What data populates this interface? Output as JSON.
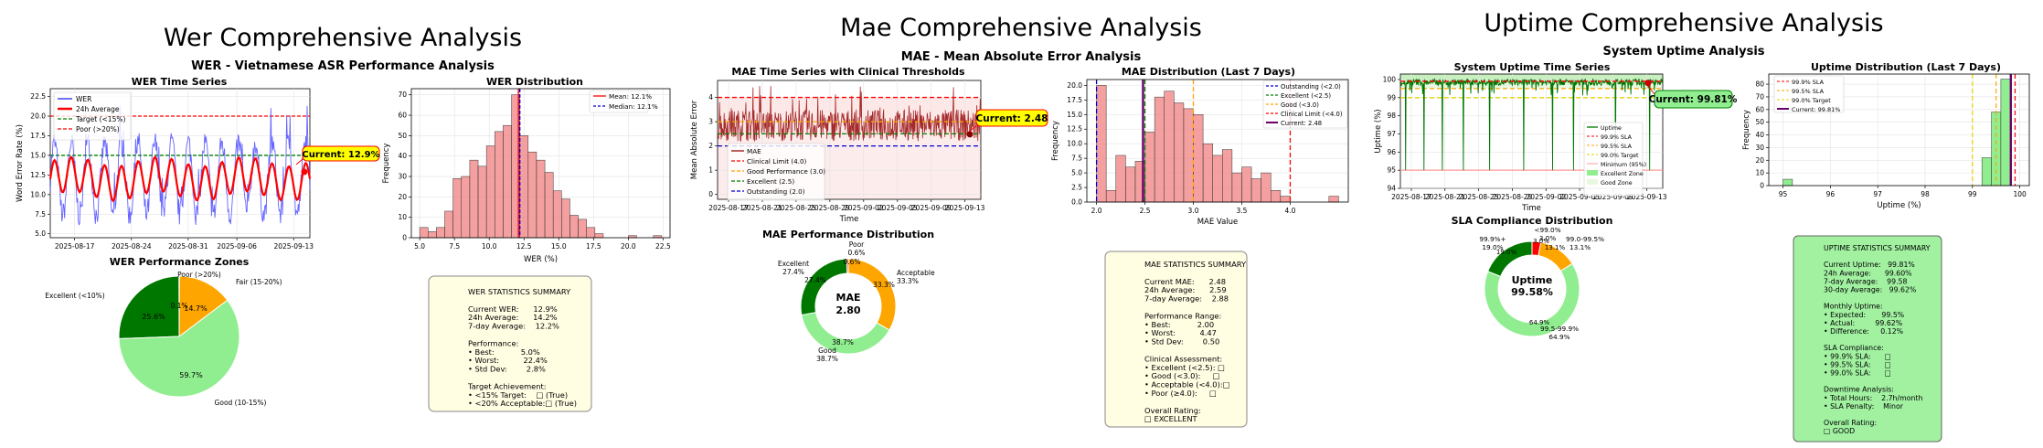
{
  "panels": [
    {
      "suptitle": "Wer Comprehensive Analysis",
      "subtitle": "WER - Vietnamese ASR Performance Analysis",
      "ts": {
        "title": "WER Time Series",
        "ylabel": "Word Error Rate (%)",
        "yticks": [
          "5.0",
          "7.5",
          "10.0",
          "12.5",
          "15.0",
          "17.5",
          "20.0",
          "22.5"
        ],
        "xticks": [
          "2025-08-17",
          "2025-08-24",
          "2025-08-31",
          "2025-09-06",
          "2025-09-13"
        ],
        "legend": [
          "WER",
          "24h Average",
          "Target (<15%)",
          "Poor (>20%)"
        ],
        "annotation": "Current: 12.9%"
      },
      "hist": {
        "title": "WER Distribution",
        "xlabel": "WER (%)",
        "ylabel": "Frequency",
        "xticks": [
          "5.0",
          "7.5",
          "10.0",
          "12.5",
          "15.0",
          "17.5",
          "20.0",
          "22.5"
        ],
        "yticks": [
          "0",
          "10",
          "20",
          "30",
          "40",
          "50",
          "60",
          "70"
        ],
        "legend": [
          "Mean: 12.1%",
          "Median: 12.1%"
        ]
      },
      "pie": {
        "title": "WER Performance Zones",
        "labels": [
          "Excellent (<10%)",
          "Poor (>20%)",
          "Fair (15-20%)",
          "Good (10-15%)"
        ],
        "pcts": [
          "25.6%",
          "0.1%",
          "14.7%",
          "59.7%"
        ]
      },
      "stats": [
        "WER STATISTICS SUMMARY",
        "",
        "Current WER:      12.9%",
        "24h Average:      14.2%",
        "7-day Average:    12.2%",
        "",
        "Performance:",
        "• Best:           5.0%",
        "• Worst:          22.4%",
        "• Std Dev:        2.8%",
        "",
        "Target Achievement:",
        "• <15% Target:    □ (True)",
        "• <20% Acceptable:□ (True)"
      ]
    },
    {
      "suptitle": "Mae Comprehensive Analysis",
      "subtitle": "MAE - Mean Absolute Error Analysis",
      "ts": {
        "title": "MAE Time Series with Clinical Thresholds",
        "ylabel": "Mean Absolute Error",
        "xlabel": "Time",
        "yticks": [
          "0",
          "1",
          "2",
          "3",
          "4"
        ],
        "xticks": [
          "2025-08-17",
          "2025-08-21",
          "2025-08-25",
          "2025-08-29",
          "2025-09-02",
          "2025-09-05",
          "2025-09-09",
          "2025-09-13"
        ],
        "legend": [
          "MAE",
          "Clinical Limit (4.0)",
          "Good Performance (3.0)",
          "Excellent (2.5)",
          "Outstanding (2.0)"
        ],
        "annotation": "Current: 2.48"
      },
      "hist": {
        "title": "MAE Distribution (Last 7 Days)",
        "xlabel": "MAE Value",
        "ylabel": "Frequency",
        "xticks": [
          "2.0",
          "2.5",
          "3.0",
          "3.5",
          "4.0"
        ],
        "yticks": [
          "0.0",
          "2.5",
          "5.0",
          "7.5",
          "10.0",
          "12.5",
          "15.0",
          "17.5",
          "20.0"
        ],
        "legend": [
          "Outstanding (<2.0)",
          "Excellent (<2.5)",
          "Good (<3.0)",
          "Clinical Limit (<4.0)",
          "Current: 2.48"
        ]
      },
      "pie": {
        "title": "MAE Performance Distribution",
        "center1": "MAE",
        "center2": "2.80",
        "labels": [
          "Poor",
          "Acceptable",
          "Good",
          "Excellent"
        ],
        "pcts": [
          "0.6%",
          "33.3%",
          "38.7%",
          "27.4%"
        ],
        "inner": [
          "0.6%",
          "33.3%",
          "38.7%",
          "27.4%"
        ]
      },
      "stats": [
        "MAE STATISTICS SUMMARY",
        "",
        "Current MAE:      2.48",
        "24h Average:      2.59",
        "7-day Average:    2.88",
        "",
        "Performance Range:",
        "• Best:           2.00",
        "• Worst:          4.47",
        "• Std Dev:        0.50",
        "",
        "Clinical Assessment:",
        "• Excellent (<2.5): □",
        "• Good (<3.0):     □",
        "• Acceptable (<4.0):□",
        "• Poor (≥4.0):     □",
        "",
        "Overall Rating:",
        "□ EXCELLENT"
      ]
    },
    {
      "suptitle": "Uptime Comprehensive Analysis",
      "subtitle": "System Uptime Analysis",
      "ts": {
        "title": "System Uptime Time Series",
        "ylabel": "Uptime (%)",
        "xlabel": "Time",
        "yticks": [
          "94",
          "95",
          "96",
          "97",
          "98",
          "99",
          "100"
        ],
        "xticks": [
          "2025-08-17",
          "2025-08-21",
          "2025-08-25",
          "2025-08-29",
          "2025-09-02",
          "2025-09-05",
          "2025-09-09",
          "2025-09-13"
        ],
        "legend": [
          "Uptime",
          "99.9% SLA",
          "99.5% SLA",
          "99.0% Target",
          "Minimum (95%)",
          "Excellent Zone",
          "Good Zone"
        ],
        "annotation": "Current: 99.81%"
      },
      "hist": {
        "title": "Uptime Distribution (Last 7 Days)",
        "xlabel": "Uptime (%)",
        "ylabel": "Frequency",
        "xticks": [
          "95",
          "96",
          "97",
          "98",
          "99",
          "100"
        ],
        "yticks": [
          "0",
          "10",
          "20",
          "30",
          "40",
          "50",
          "60",
          "70",
          "80"
        ],
        "legend": [
          "99.9% SLA",
          "99.5% SLA",
          "99.0% Target",
          "Current: 99.81%"
        ]
      },
      "pie": {
        "title": "SLA Compliance Distribution",
        "center1": "Uptime",
        "center2": "99.58%",
        "labels": [
          "99.9%+",
          "<99.0%",
          "99.0-99.5%",
          "99.5-99.9%"
        ],
        "pcts": [
          "19.0%",
          "3.0%",
          "13.1%",
          "64.9%"
        ],
        "inner": [
          "19.0%",
          "3.0%",
          "13.1%",
          "64.9%"
        ]
      },
      "stats": [
        "UPTIME STATISTICS SUMMARY",
        "",
        "Current Uptime:   99.81%",
        "24h Average:      99.60%",
        "7-day Average:    99.58",
        "30-day Average:   99.62%",
        "",
        "Monthly Uptime:",
        "• Expected:       99.5%",
        "• Actual:         99.62%",
        "• Difference:     0.12%",
        "",
        "SLA Compliance:",
        "• 99.9% SLA:      □",
        "• 99.5% SLA:      □",
        "• 99.0% SLA:      □",
        "",
        "Downtime Analysis:",
        "• Total Hours:    2.7h/month",
        "• SLA Penalty:    Minor",
        "",
        "Overall Rating:",
        "□ GOOD"
      ]
    }
  ],
  "chart_data": [
    {
      "type": "line",
      "title": "WER Time Series",
      "xlabel": "",
      "ylabel": "Word Error Rate (%)",
      "ylim": [
        4.5,
        23.5
      ],
      "x_range": [
        "2025-08-14",
        "2025-09-15"
      ],
      "series": [
        {
          "name": "24h Average",
          "x": [
            "2025-08-14",
            "2025-08-17",
            "2025-08-20",
            "2025-08-23",
            "2025-08-26",
            "2025-08-29",
            "2025-09-01",
            "2025-09-04",
            "2025-09-07",
            "2025-09-10",
            "2025-09-13",
            "2025-09-15"
          ],
          "values": [
            12.5,
            9.3,
            13.2,
            10.5,
            12.8,
            12.0,
            11.8,
            12.8,
            12.8,
            13.2,
            10.2,
            12.9
          ]
        }
      ],
      "thresholds": {
        "Target (<15%)": 15,
        "Poor (>20%)": 20
      },
      "current": 12.9
    },
    {
      "type": "bar",
      "title": "WER Distribution",
      "xlabel": "WER (%)",
      "ylabel": "Frequency",
      "bin_edges": [
        5.0,
        5.6,
        6.2,
        6.8,
        7.4,
        8.0,
        8.6,
        9.2,
        9.8,
        10.4,
        11.0,
        11.6,
        12.2,
        12.8,
        13.4,
        14.0,
        14.6,
        15.2,
        15.8,
        16.4,
        17.0,
        17.6,
        18.2,
        18.8,
        19.4,
        20.0,
        20.6,
        21.2,
        21.8,
        22.4
      ],
      "counts": [
        5,
        3,
        5,
        13,
        29,
        30,
        38,
        35,
        45,
        52,
        55,
        70,
        50,
        42,
        38,
        32,
        23,
        19,
        11,
        9,
        5,
        2,
        0,
        0,
        0,
        1,
        0,
        0,
        1
      ],
      "mean": 12.1,
      "median": 12.1,
      "ylim": [
        0,
        73
      ]
    },
    {
      "type": "pie",
      "title": "WER Performance Zones",
      "labels": [
        "Excellent (<10%)",
        "Poor (>20%)",
        "Fair (15-20%)",
        "Good (10-15%)"
      ],
      "values": [
        25.6,
        0.1,
        14.7,
        59.7
      ],
      "colors": [
        "#007800",
        "#ff0000",
        "#ffa500",
        "#90ee90"
      ]
    },
    {
      "type": "line",
      "title": "MAE Time Series with Clinical Thresholds",
      "xlabel": "Time",
      "ylabel": "Mean Absolute Error",
      "ylim": [
        -0.2,
        4.7
      ],
      "series": [
        {
          "name": "MAE",
          "x_range": [
            "2025-08-14",
            "2025-09-15"
          ],
          "mean": 2.8,
          "range": [
            2.0,
            4.47
          ]
        }
      ],
      "thresholds": {
        "Clinical Limit (4.0)": 4.0,
        "Good Performance (3.0)": 3.0,
        "Excellent (2.5)": 2.5,
        "Outstanding (2.0)": 2.0
      },
      "current": 2.48
    },
    {
      "type": "bar",
      "title": "MAE Distribution (Last 7 Days)",
      "xlabel": "MAE Value",
      "ylabel": "Frequency",
      "bin_edges": [
        2.0,
        2.1,
        2.2,
        2.3,
        2.4,
        2.5,
        2.6,
        2.7,
        2.8,
        2.9,
        3.0,
        3.1,
        3.2,
        3.3,
        3.4,
        3.5,
        3.6,
        3.7,
        3.8,
        3.9,
        4.0,
        4.1,
        4.2,
        4.3,
        4.4,
        4.5
      ],
      "counts": [
        20,
        2,
        8,
        6,
        7,
        12,
        18,
        19,
        17,
        16,
        15,
        10,
        8,
        9,
        5,
        6,
        4,
        5,
        2,
        1,
        0,
        0,
        0,
        0,
        1
      ],
      "ylim": [
        0,
        21
      ]
    },
    {
      "type": "pie",
      "title": "MAE Performance Distribution",
      "labels": [
        "Poor",
        "Acceptable",
        "Good",
        "Excellent"
      ],
      "values": [
        0.6,
        33.3,
        38.7,
        27.4
      ],
      "colors": [
        "#ff0000",
        "#ffa500",
        "#90ee90",
        "#007800"
      ]
    },
    {
      "type": "line",
      "title": "System Uptime Time Series",
      "xlabel": "Time",
      "ylabel": "Uptime (%)",
      "ylim": [
        94,
        100.3
      ],
      "thresholds": {
        "99.9% SLA": 99.9,
        "99.5% SLA": 99.5,
        "99.0% Target": 99.0,
        "Minimum (95%)": 95
      },
      "current": 99.81
    },
    {
      "type": "bar",
      "title": "Uptime Distribution (Last 7 Days)",
      "xlabel": "Uptime (%)",
      "ylabel": "Frequency",
      "bin_edges": [
        95.0,
        95.2,
        99.0,
        99.2,
        99.4,
        99.6,
        99.8,
        100.0
      ],
      "counts": [
        5,
        0,
        0,
        22,
        58,
        84,
        0
      ],
      "ylim": [
        0,
        88
      ]
    },
    {
      "type": "pie",
      "title": "SLA Compliance Distribution",
      "labels": [
        "99.9%+",
        "<99.0%",
        "99.0-99.5%",
        "99.5-99.9%"
      ],
      "values": [
        19.0,
        3.0,
        13.1,
        64.9
      ],
      "colors": [
        "#007800",
        "#ff0000",
        "#ffa500",
        "#90ee90"
      ]
    }
  ]
}
